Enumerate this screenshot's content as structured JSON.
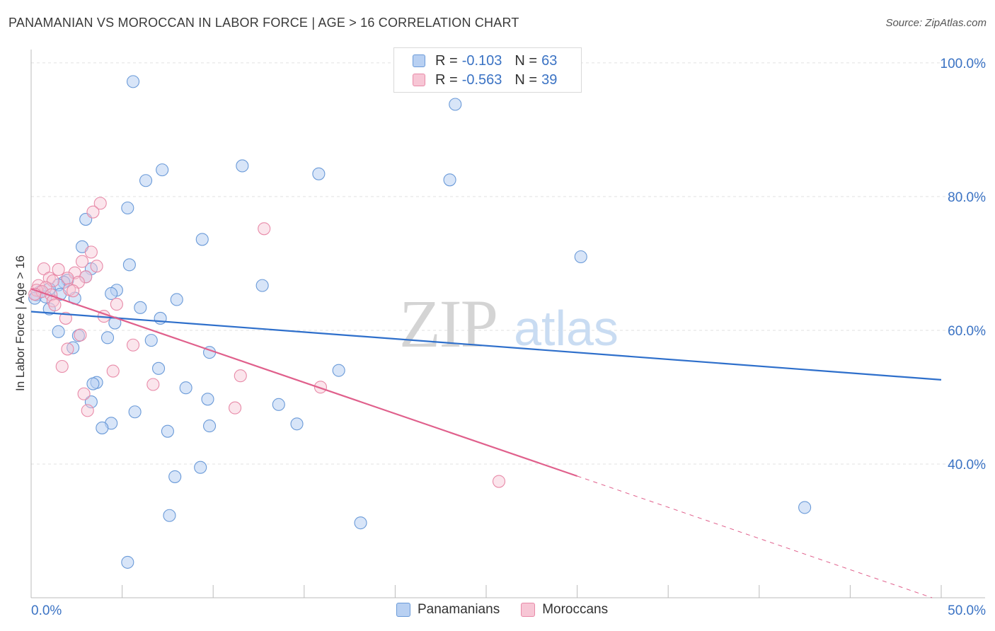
{
  "title": "PANAMANIAN VS MOROCCAN IN LABOR FORCE | AGE > 16 CORRELATION CHART",
  "source": "Source: ZipAtlas.com",
  "watermark": {
    "zip": "ZIP",
    "atlas": "atlas"
  },
  "legend_top": [
    {
      "r_label": "R =",
      "r_value": "-0.103",
      "n_label": "N =",
      "n_value": "63"
    },
    {
      "r_label": "R =",
      "r_value": "-0.563",
      "n_label": "N =",
      "n_value": "39"
    }
  ],
  "legend_bottom": [
    "Panamanians",
    "Moroccans"
  ],
  "colors": {
    "blue_fill": "#b8d0f2",
    "blue_stroke": "#6a9ad8",
    "blue_line": "#2e6fcb",
    "pink_fill": "#f7c6d5",
    "pink_stroke": "#e88aa8",
    "pink_line": "#e0608c",
    "tick_text": "#3b73c4",
    "grid": "#e2e2e2"
  },
  "chart_data": {
    "type": "scatter",
    "title": "PANAMANIAN VS MOROCCAN IN LABOR FORCE | AGE > 16 CORRELATION CHART",
    "xlabel": "",
    "ylabel": "In Labor Force | Age > 16",
    "xlim": [
      0,
      50
    ],
    "ylim": [
      20,
      102
    ],
    "x_tick_labels": [
      {
        "value": 0,
        "label": "0.0%"
      },
      {
        "value": 50,
        "label": "50.0%"
      }
    ],
    "y_tick_labels": [
      {
        "value": 100,
        "label": "100.0%"
      },
      {
        "value": 80,
        "label": "80.0%"
      },
      {
        "value": 60,
        "label": "60.0%"
      },
      {
        "value": 40,
        "label": "40.0%"
      }
    ],
    "series": [
      {
        "name": "Panamanians",
        "color": "#6a9ad8",
        "trend": {
          "x0": 0,
          "y0": 62.8,
          "x1": 50,
          "y1": 52.6,
          "dashed_from": null
        },
        "points": [
          [
            5.6,
            97.2
          ],
          [
            23.3,
            93.8
          ],
          [
            11.6,
            84.6
          ],
          [
            7.2,
            84
          ],
          [
            6.3,
            82.4
          ],
          [
            15.8,
            83.4
          ],
          [
            23,
            82.5
          ],
          [
            5.3,
            78.3
          ],
          [
            3.0,
            76.6
          ],
          [
            9.4,
            73.6
          ],
          [
            2.8,
            72.5
          ],
          [
            30.2,
            71.0
          ],
          [
            5.4,
            69.8
          ],
          [
            3.3,
            69.2
          ],
          [
            3.0,
            68.0
          ],
          [
            2.0,
            67.5
          ],
          [
            1.8,
            67.2
          ],
          [
            1.5,
            66.8
          ],
          [
            12.7,
            66.7
          ],
          [
            4.7,
            66.0
          ],
          [
            4.4,
            65.5
          ],
          [
            1.0,
            66.2
          ],
          [
            0.5,
            65.8
          ],
          [
            0.3,
            65.3
          ],
          [
            0.2,
            64.8
          ],
          [
            0.8,
            65.0
          ],
          [
            1.6,
            65.4
          ],
          [
            2.4,
            64.8
          ],
          [
            8.0,
            64.6
          ],
          [
            6.0,
            63.4
          ],
          [
            1.0,
            63.2
          ],
          [
            7.1,
            61.8
          ],
          [
            4.6,
            61.1
          ],
          [
            1.5,
            59.8
          ],
          [
            2.6,
            59.2
          ],
          [
            4.2,
            58.9
          ],
          [
            6.6,
            58.5
          ],
          [
            2.3,
            57.4
          ],
          [
            9.8,
            56.7
          ],
          [
            16.9,
            54.0
          ],
          [
            7.0,
            54.3
          ],
          [
            3.6,
            52.2
          ],
          [
            3.4,
            52.0
          ],
          [
            8.5,
            51.4
          ],
          [
            9.7,
            49.7
          ],
          [
            13.6,
            48.9
          ],
          [
            3.3,
            49.3
          ],
          [
            5.7,
            47.8
          ],
          [
            4.4,
            46.1
          ],
          [
            14.6,
            46.0
          ],
          [
            3.9,
            45.4
          ],
          [
            9.8,
            45.7
          ],
          [
            7.5,
            44.9
          ],
          [
            9.3,
            39.5
          ],
          [
            7.9,
            38.1
          ],
          [
            42.5,
            33.5
          ],
          [
            7.6,
            32.3
          ],
          [
            18.1,
            31.2
          ],
          [
            5.3,
            25.3
          ]
        ]
      },
      {
        "name": "Moroccans",
        "color": "#e88aa8",
        "trend": {
          "x0": 0,
          "y0": 66.2,
          "x1": 49.5,
          "y1": 20,
          "dashed_from": 30.0
        },
        "points": [
          [
            3.8,
            79.0
          ],
          [
            3.4,
            77.7
          ],
          [
            12.8,
            75.2
          ],
          [
            3.3,
            71.7
          ],
          [
            2.8,
            70.3
          ],
          [
            3.6,
            69.6
          ],
          [
            0.7,
            69.2
          ],
          [
            1.5,
            69.1
          ],
          [
            1.0,
            67.8
          ],
          [
            2.4,
            68.6
          ],
          [
            2.0,
            67.8
          ],
          [
            3.0,
            68.0
          ],
          [
            1.2,
            67.4
          ],
          [
            2.6,
            67.2
          ],
          [
            0.4,
            66.7
          ],
          [
            0.8,
            66.4
          ],
          [
            0.3,
            66.0
          ],
          [
            0.6,
            65.8
          ],
          [
            0.2,
            65.4
          ],
          [
            2.1,
            66.1
          ],
          [
            2.3,
            65.9
          ],
          [
            1.1,
            65.3
          ],
          [
            1.2,
            64.4
          ],
          [
            4.7,
            63.9
          ],
          [
            1.3,
            63.8
          ],
          [
            4.0,
            62.1
          ],
          [
            1.9,
            61.8
          ],
          [
            2.7,
            59.3
          ],
          [
            5.6,
            57.8
          ],
          [
            2.0,
            57.2
          ],
          [
            1.7,
            54.6
          ],
          [
            4.5,
            53.9
          ],
          [
            11.5,
            53.2
          ],
          [
            6.7,
            51.9
          ],
          [
            15.9,
            51.5
          ],
          [
            2.9,
            50.5
          ],
          [
            3.1,
            48.0
          ],
          [
            11.2,
            48.4
          ],
          [
            25.7,
            37.4
          ]
        ]
      }
    ]
  }
}
